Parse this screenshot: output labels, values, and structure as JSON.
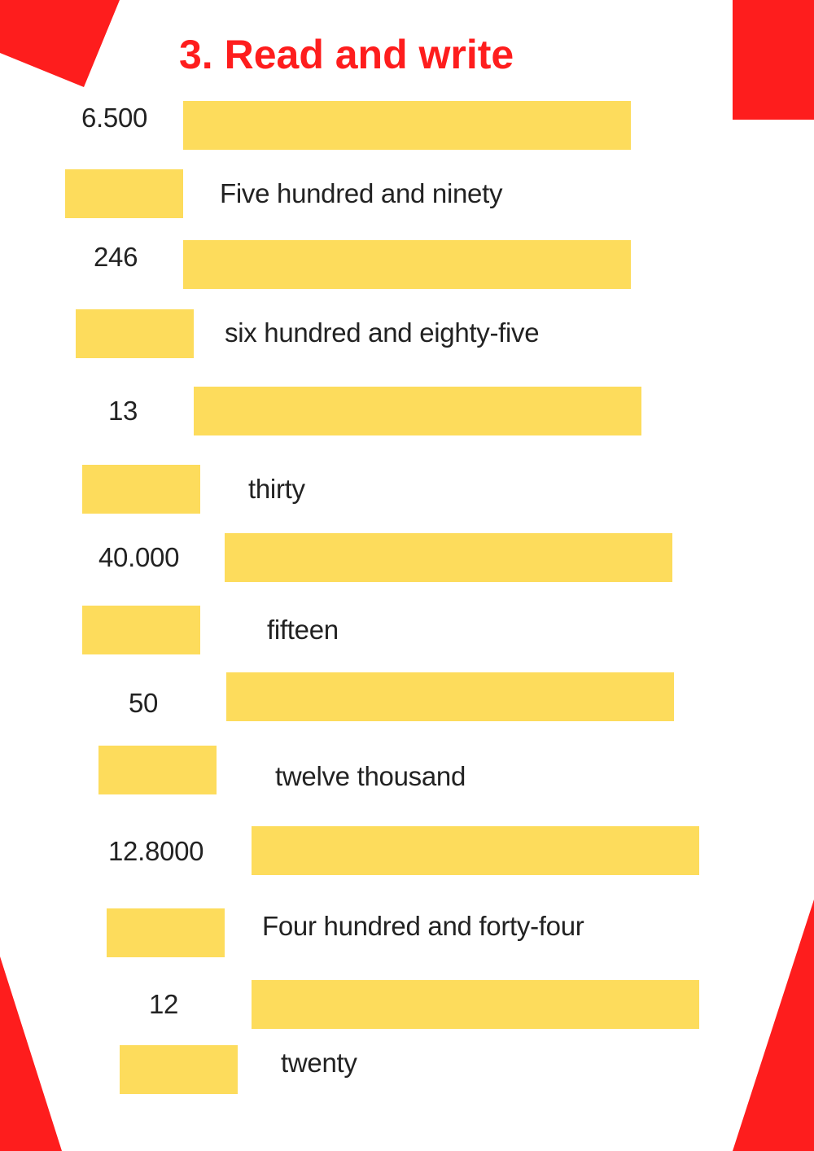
{
  "title": "3. Read and write",
  "colors": {
    "accent_red": "#fe1d1d",
    "answer_box_yellow": "#fddc5c",
    "text": "#222222"
  },
  "items": [
    {
      "prompt": "6.500",
      "type": "number-to-words"
    },
    {
      "prompt": "Five hundred and ninety",
      "type": "words-to-number"
    },
    {
      "prompt": "246",
      "type": "number-to-words"
    },
    {
      "prompt": "six hundred and eighty-five",
      "type": "words-to-number"
    },
    {
      "prompt": "13",
      "type": "number-to-words"
    },
    {
      "prompt": "thirty",
      "type": "words-to-number"
    },
    {
      "prompt": "40.000",
      "type": "number-to-words"
    },
    {
      "prompt": "fifteen",
      "type": "words-to-number"
    },
    {
      "prompt": "50",
      "type": "number-to-words"
    },
    {
      "prompt": "twelve thousand",
      "type": "words-to-number"
    },
    {
      "prompt": "12.8000",
      "type": "number-to-words"
    },
    {
      "prompt": "Four hundred and forty-four",
      "type": "words-to-number"
    },
    {
      "prompt": "12",
      "type": "number-to-words"
    },
    {
      "prompt": "twenty",
      "type": "words-to-number"
    }
  ]
}
